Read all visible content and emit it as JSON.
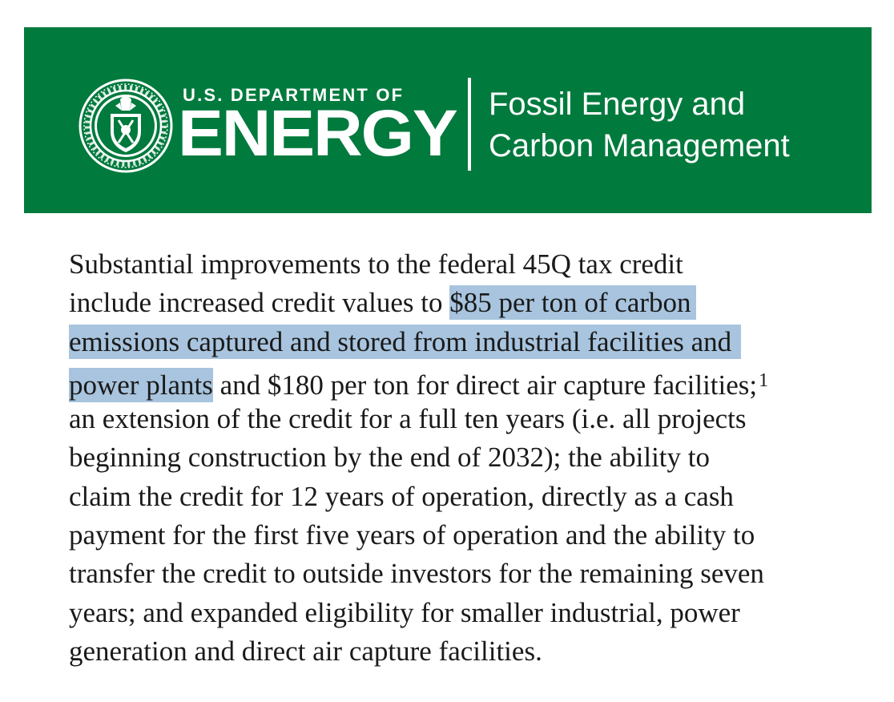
{
  "header": {
    "department_line": "U.S. DEPARTMENT OF",
    "department_word": "ENERGY",
    "office_line_1": "Fossil Energy and",
    "office_line_2": "Carbon Management",
    "seal_icon": "doe-seal-icon",
    "background_color": "#007a3d"
  },
  "paragraph": {
    "highlight_color": "#a8c4de",
    "lines": [
      {
        "pre": "Substantial improvements to the federal 45Q tax credit",
        "hl": "",
        "post": ""
      },
      {
        "pre": "include increased credit values to ",
        "hl": "$85 per ton of carbon",
        "post": ""
      },
      {
        "pre": "",
        "hl": "emissions captured and stored from industrial facilities and",
        "post": ""
      },
      {
        "pre": "",
        "hl": "power plants",
        "post": " and $180 per ton for direct air capture facilities;",
        "sup": "1"
      },
      {
        "pre": "an extension of the credit for a full ten years (i.e. all projects",
        "hl": "",
        "post": ""
      },
      {
        "pre": "beginning construction by the end of 2032); the ability to",
        "hl": "",
        "post": ""
      },
      {
        "pre": "claim the credit for 12 years of operation, directly as a cash",
        "hl": "",
        "post": ""
      },
      {
        "pre": "payment for the first five years of operation and the ability to",
        "hl": "",
        "post": ""
      },
      {
        "pre": "transfer the credit to outside investors for the remaining seven",
        "hl": "",
        "post": ""
      },
      {
        "pre": "years; and expanded eligibility for smaller industrial, power",
        "hl": "",
        "post": ""
      },
      {
        "pre": "generation and direct air capture facilities.",
        "hl": "",
        "post": ""
      }
    ]
  }
}
